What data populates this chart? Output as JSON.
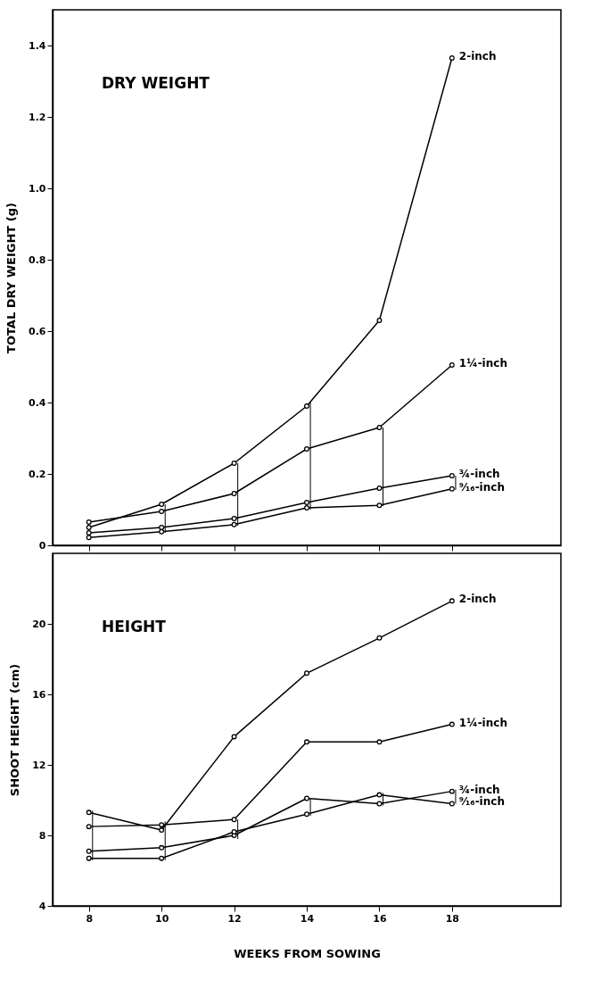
{
  "chart_data": [
    {
      "type": "line",
      "title": "DRY WEIGHT",
      "ylabel": "TOTAL DRY WEIGHT (g)",
      "xlim": [
        7,
        21
      ],
      "xticks": [
        8,
        10,
        12,
        14,
        16,
        18
      ],
      "ylim": [
        0,
        1.5
      ],
      "yticks": [
        {
          "value": 0,
          "label": "0"
        },
        0.2,
        0.4,
        0.6,
        0.8,
        {
          "value": 1,
          "label": "1.0"
        },
        1.2,
        1.4
      ],
      "tick_labels": "y",
      "legend": false,
      "marker": "circle",
      "line_style": "solid",
      "x": [
        8,
        10,
        12,
        14,
        16,
        18
      ],
      "series": [
        {
          "name": "2-inch",
          "color": "#000000",
          "values": [
            0.05,
            0.115,
            0.23,
            0.39,
            0.63,
            1.365
          ]
        },
        {
          "name": "1¼-inch",
          "color": "#000000",
          "values": [
            0.065,
            0.095,
            0.145,
            0.27,
            0.33,
            0.505
          ]
        },
        {
          "name": "¾-inch",
          "color": "#000000",
          "values": [
            0.035,
            0.05,
            0.075,
            0.12,
            0.16,
            0.195
          ]
        },
        {
          "name": "⁹⁄₁₆-inch",
          "color": "#000000",
          "values": [
            0.022,
            0.038,
            0.058,
            0.105,
            0.112,
            0.158
          ]
        },
        {
          "type": "bar",
          "color": "#000000",
          "x": [
            10.1,
            12.1,
            14.1,
            16.1,
            18.1
          ],
          "base": [
            0.035,
            0.055,
            0.1,
            0.11,
            0.155
          ],
          "values": [
            0.08,
            0.175,
            0.3,
            0.22,
            0.04
          ]
        }
      ]
    },
    {
      "type": "line",
      "title": "HEIGHT",
      "xlabel": "WEEKS FROM SOWING",
      "ylabel": "SHOOT HEIGHT (cm)",
      "xlim": [
        7,
        21
      ],
      "xticks": [
        8,
        10,
        12,
        14,
        16,
        18
      ],
      "ylim": [
        4,
        24
      ],
      "yticks": [
        4,
        8,
        12,
        16,
        20
      ],
      "legend": false,
      "marker": "circle",
      "line_style": "solid",
      "x": [
        8,
        10,
        12,
        14,
        16,
        18
      ],
      "series": [
        {
          "name": "2-inch",
          "color": "#000000",
          "values": [
            9.3,
            8.3,
            13.6,
            17.2,
            19.2,
            21.3
          ]
        },
        {
          "name": "1¼-inch",
          "color": "#000000",
          "values": [
            8.5,
            8.6,
            8.9,
            13.3,
            13.3,
            14.3
          ]
        },
        {
          "name": "¾-inch",
          "color": "#000000",
          "values": [
            7.1,
            7.3,
            8.0,
            10.1,
            9.8,
            10.5
          ]
        },
        {
          "name": "⁹⁄₁₆-inch",
          "color": "#000000",
          "values": [
            6.7,
            6.7,
            8.2,
            9.2,
            10.3,
            9.8
          ]
        },
        {
          "type": "bar",
          "color": "#000000",
          "x": [
            8.1,
            10.1,
            12.1,
            14.1,
            16.1,
            18.1
          ],
          "base": [
            6.6,
            6.6,
            7.8,
            9.1,
            9.7,
            9.8
          ],
          "values": [
            2.8,
            2.2,
            1.1,
            1.0,
            0.7,
            0.8
          ]
        }
      ]
    }
  ]
}
